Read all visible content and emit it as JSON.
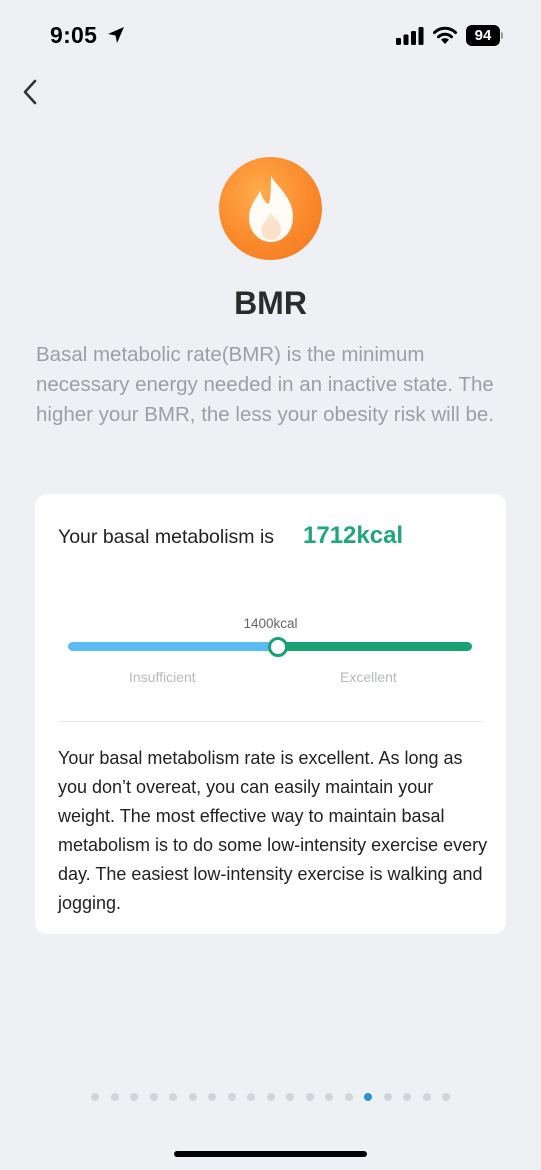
{
  "status_bar": {
    "time": "9:05",
    "battery": "94",
    "icons": [
      "location-arrow-icon",
      "cellular-signal-icon",
      "wifi-icon",
      "battery-icon"
    ]
  },
  "nav": {
    "back_icon": "chevron-left-icon"
  },
  "hero": {
    "icon": "flame-icon",
    "icon_gradient": [
      "#ffac4c",
      "#f1731e"
    ]
  },
  "title": "BMR",
  "intro": "Basal metabolic rate(BMR) is the minimum necessary energy needed in an inactive state. The higher your BMR, the less your obesity risk will be.",
  "card": {
    "label": "Your basal metabolism is",
    "value": "1712kcal",
    "value_color": "#1ea87a",
    "scale": {
      "threshold_label": "1400kcal",
      "left_label": "Insufficient",
      "right_label": "Excellent",
      "left_color": "#5bbcf3",
      "right_color": "#17a271"
    },
    "advice": "Your basal metabolism rate is excellent. As long as you don’t overeat, you can easily maintain your weight. The most effective way to maintain basal metabolism is to do some low-intensity exercise every day. The easiest low-intensity exercise is walking and jogging."
  },
  "pager": {
    "total": 19,
    "active_index": 14,
    "active_color": "#2a95d6"
  }
}
